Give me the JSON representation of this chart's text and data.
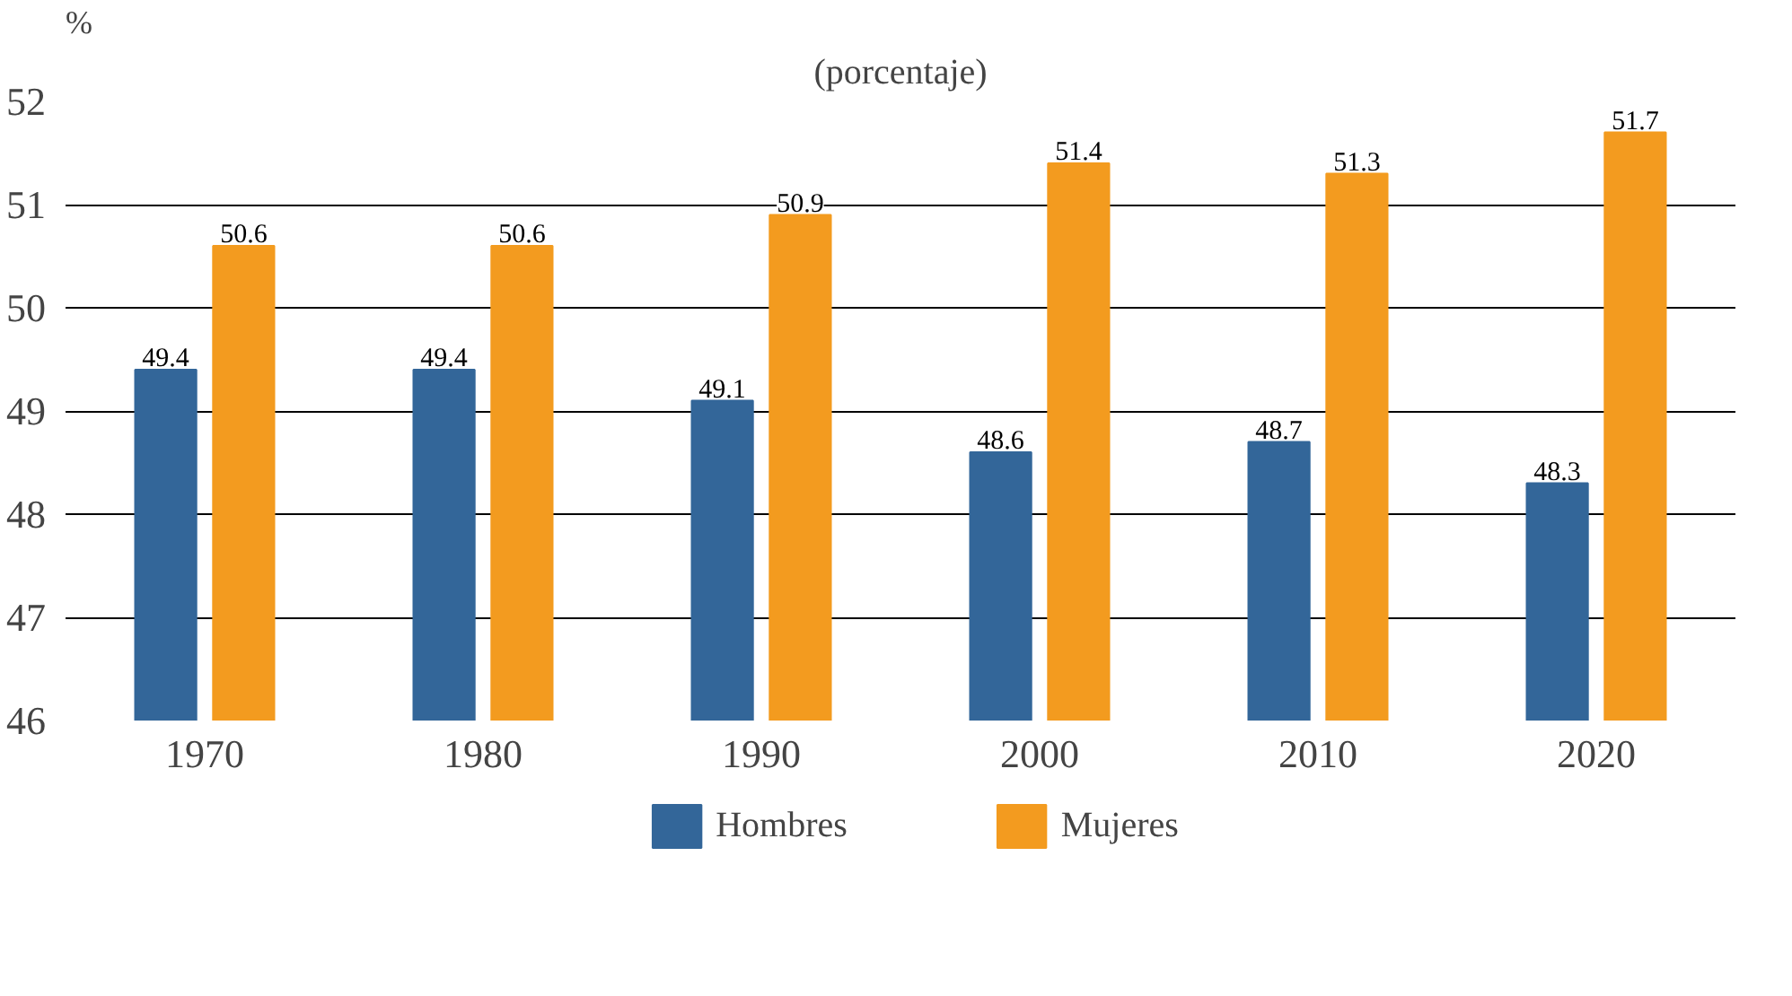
{
  "chart_data": {
    "type": "bar",
    "title": "(porcentaje)",
    "ylabel": "%",
    "categories": [
      "1970",
      "1980",
      "1990",
      "2000",
      "2010",
      "2020"
    ],
    "series": [
      {
        "name": "Hombres",
        "color": "#336699",
        "values": [
          49.4,
          49.4,
          49.1,
          48.6,
          48.7,
          48.3
        ]
      },
      {
        "name": "Mujeres",
        "color": "#f39b1f",
        "values": [
          50.6,
          50.6,
          50.9,
          51.4,
          51.3,
          51.7
        ]
      }
    ],
    "ylim": [
      46,
      52
    ],
    "yticks": [
      46,
      47,
      48,
      49,
      50,
      51,
      52
    ],
    "grid": "y",
    "legend": "bottom",
    "data_labels": true
  }
}
